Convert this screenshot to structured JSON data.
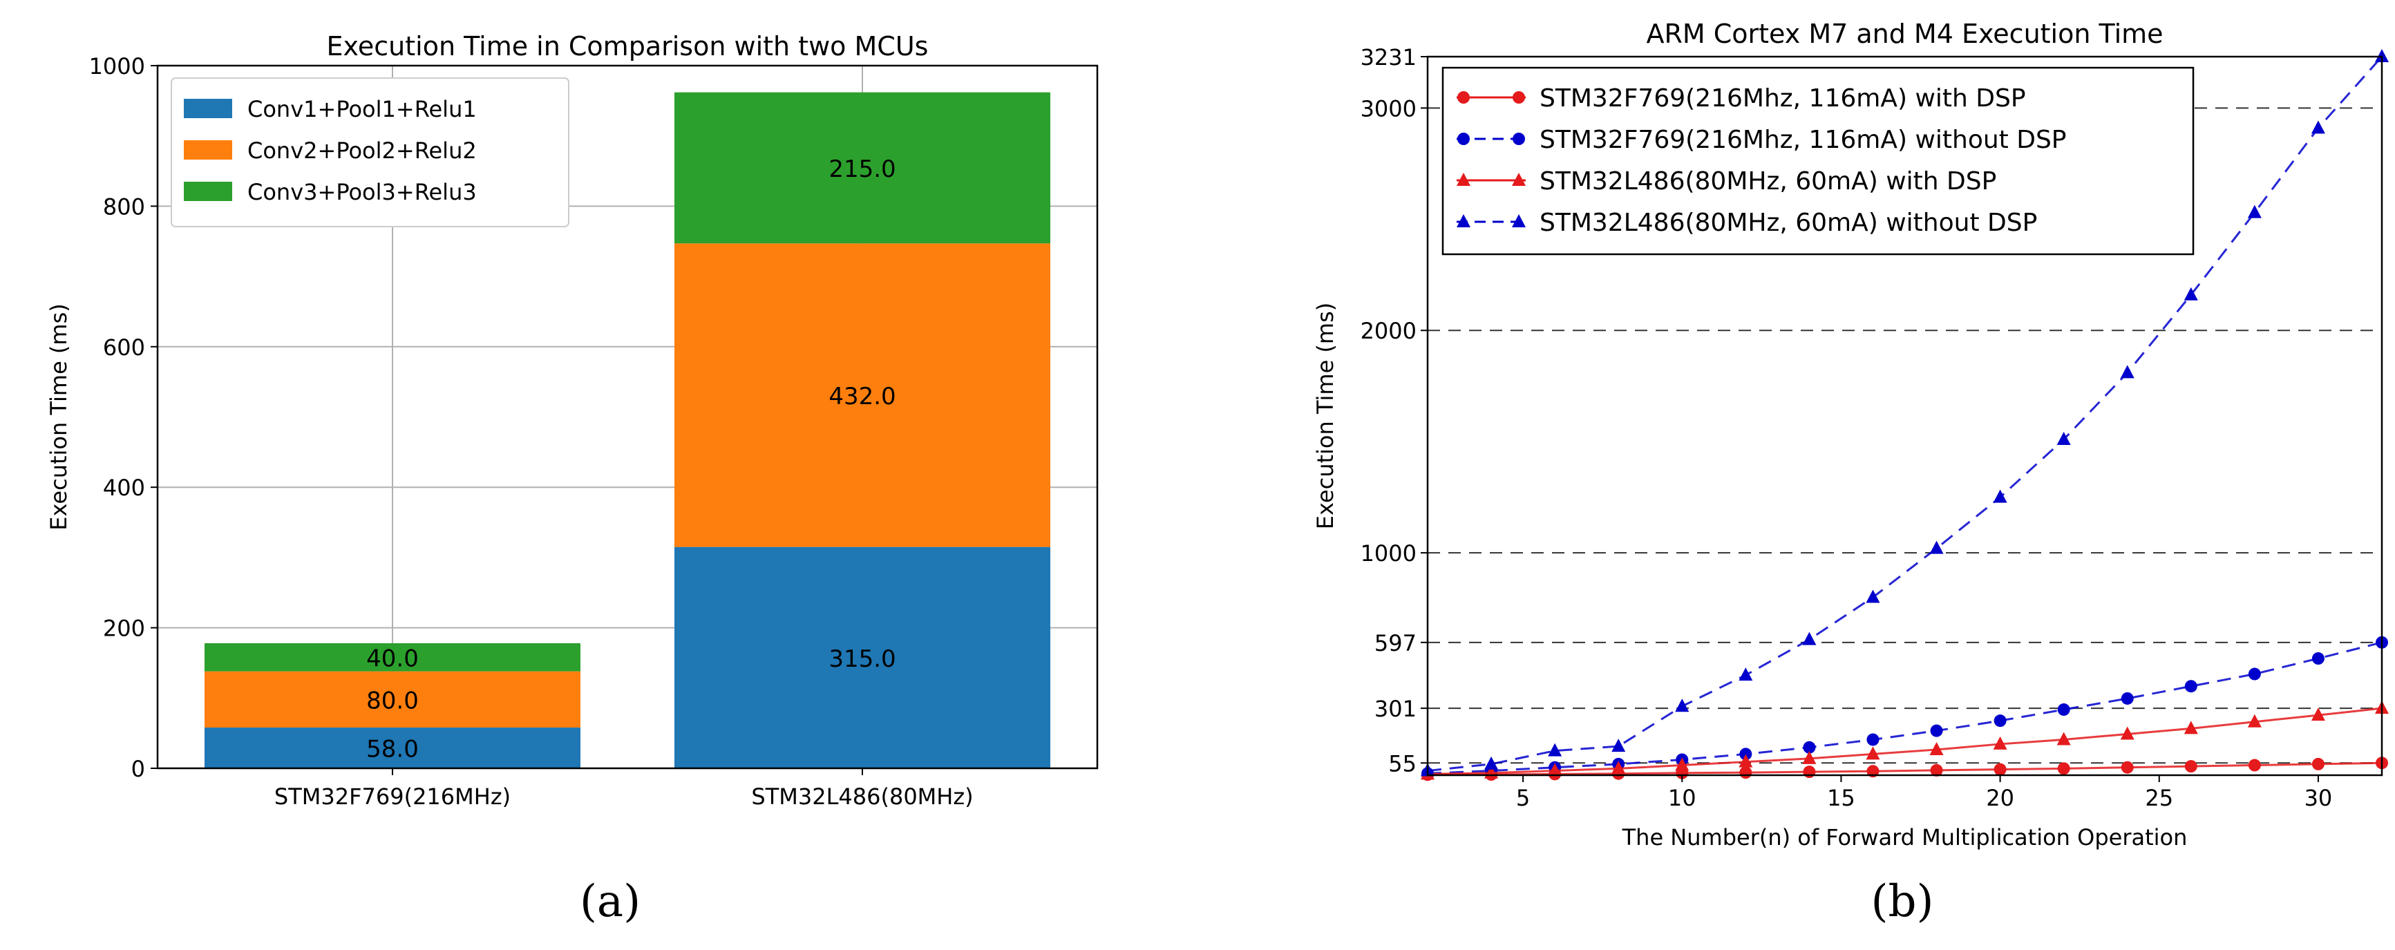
{
  "panels": {
    "a_label": "(a)",
    "b_label": "(b)"
  },
  "chart_data": [
    {
      "type": "bar",
      "stacked": true,
      "title": "Execution Time in Comparison with two MCUs",
      "xlabel": "",
      "ylabel": "Execution Time (ms)",
      "categories": [
        "STM32F769(216MHz)",
        "STM32L486(80MHz)"
      ],
      "ylim": [
        0,
        1000
      ],
      "yticks": [
        0,
        200,
        400,
        600,
        800,
        1000
      ],
      "grid": true,
      "legend_position": "top-left",
      "series": [
        {
          "name": "Conv1+Pool1+Relu1",
          "values": [
            58.0,
            315.0
          ],
          "labels": [
            "58.0",
            "315.0"
          ],
          "color": "#1f77b4"
        },
        {
          "name": "Conv2+Pool2+Relu2",
          "values": [
            80.0,
            432.0
          ],
          "labels": [
            "80.0",
            "432.0"
          ],
          "color": "#ff7f0e"
        },
        {
          "name": "Conv3+Pool3+Relu3",
          "values": [
            40.0,
            215.0
          ],
          "labels": [
            "40.0",
            "215.0"
          ],
          "color": "#2ca02c"
        }
      ]
    },
    {
      "type": "line",
      "title": "ARM Cortex M7 and M4 Execution Time",
      "xlabel": "The Number(n) of Forward Multiplication Operation",
      "ylabel": "Execution Time (ms)",
      "xlim": [
        2,
        32
      ],
      "ylim": [
        0,
        3231
      ],
      "xticks": [
        5,
        10,
        15,
        20,
        25,
        30
      ],
      "yticks": [
        55,
        301,
        597,
        1000,
        2000,
        3000,
        3231
      ],
      "grid": "horizontal-dashed",
      "legend_position": "top-left",
      "x": [
        2,
        4,
        6,
        8,
        10,
        12,
        14,
        16,
        18,
        20,
        22,
        24,
        26,
        28,
        30,
        32
      ],
      "series": [
        {
          "name": "STM32F769(216Mhz, 116mA) with DSP",
          "color": "#e41a1c",
          "marker": "circle",
          "linestyle": "solid",
          "values": [
            2,
            3,
            5,
            7,
            10,
            12,
            15,
            18,
            22,
            26,
            30,
            35,
            40,
            45,
            50,
            55
          ]
        },
        {
          "name": "STM32F769(216Mhz, 116mA) without DSP",
          "color": "#0000cc",
          "marker": "circle",
          "linestyle": "dashed",
          "values": [
            8,
            20,
            35,
            50,
            70,
            95,
            125,
            160,
            200,
            245,
            295,
            345,
            400,
            455,
            525,
            597
          ]
        },
        {
          "name": "STM32L486(80MHz, 60mA) with DSP",
          "color": "#e41a1c",
          "marker": "triangle",
          "linestyle": "solid",
          "values": [
            5,
            10,
            20,
            30,
            45,
            60,
            75,
            95,
            115,
            140,
            160,
            185,
            210,
            240,
            270,
            301
          ]
        },
        {
          "name": "STM32L486(80MHz, 60mA) without DSP",
          "color": "#0000cc",
          "marker": "triangle",
          "linestyle": "dashed",
          "values": [
            20,
            50,
            110,
            130,
            310,
            450,
            610,
            800,
            1020,
            1250,
            1510,
            1810,
            2160,
            2530,
            2910,
            3231
          ]
        }
      ]
    }
  ]
}
